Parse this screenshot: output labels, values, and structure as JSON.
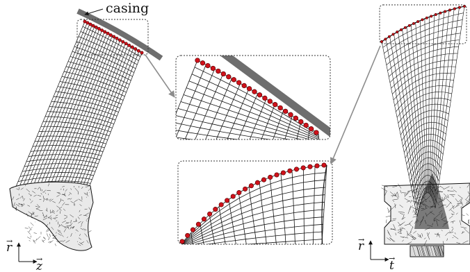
{
  "labels": {
    "casing": "casing",
    "left_axis_vertical": "r",
    "left_axis_horizontal": "z",
    "right_axis_vertical": "r",
    "right_axis_horizontal": "t"
  },
  "colors": {
    "mesh": "#111111",
    "casing": "#6e6e6e",
    "nodes": "#d0121b",
    "node_outline": "#5a0000",
    "leader_line": "#8c8c8c",
    "frame": "#333333"
  }
}
